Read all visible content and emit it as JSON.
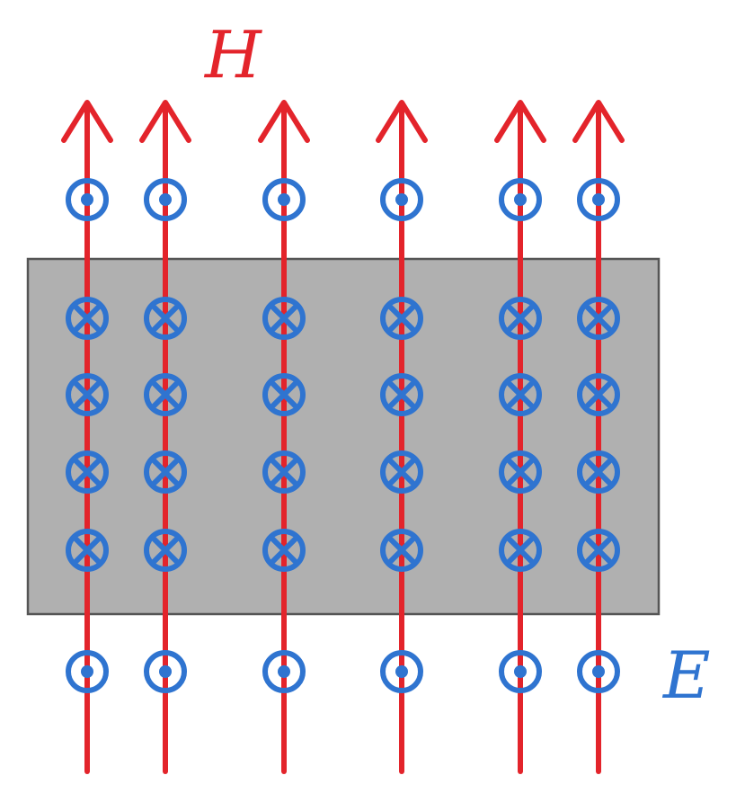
{
  "labels": {
    "h_field": "H",
    "e_field": "E"
  },
  "colors": {
    "h_field": "#e3242b",
    "e_field": "#2f74d0",
    "slab_fill": "#b0b0b0",
    "slab_stroke": "#555555"
  },
  "field_lines": {
    "count": 6,
    "h_direction": "up"
  },
  "e_symbols": {
    "outside_top": "out-of-page",
    "inside_slab": "into-page",
    "outside_bottom": "out-of-page",
    "rows_inside": 4
  },
  "icons": {
    "out_of_page": "dot-in-circle-icon",
    "into_page": "cross-in-circle-icon"
  }
}
